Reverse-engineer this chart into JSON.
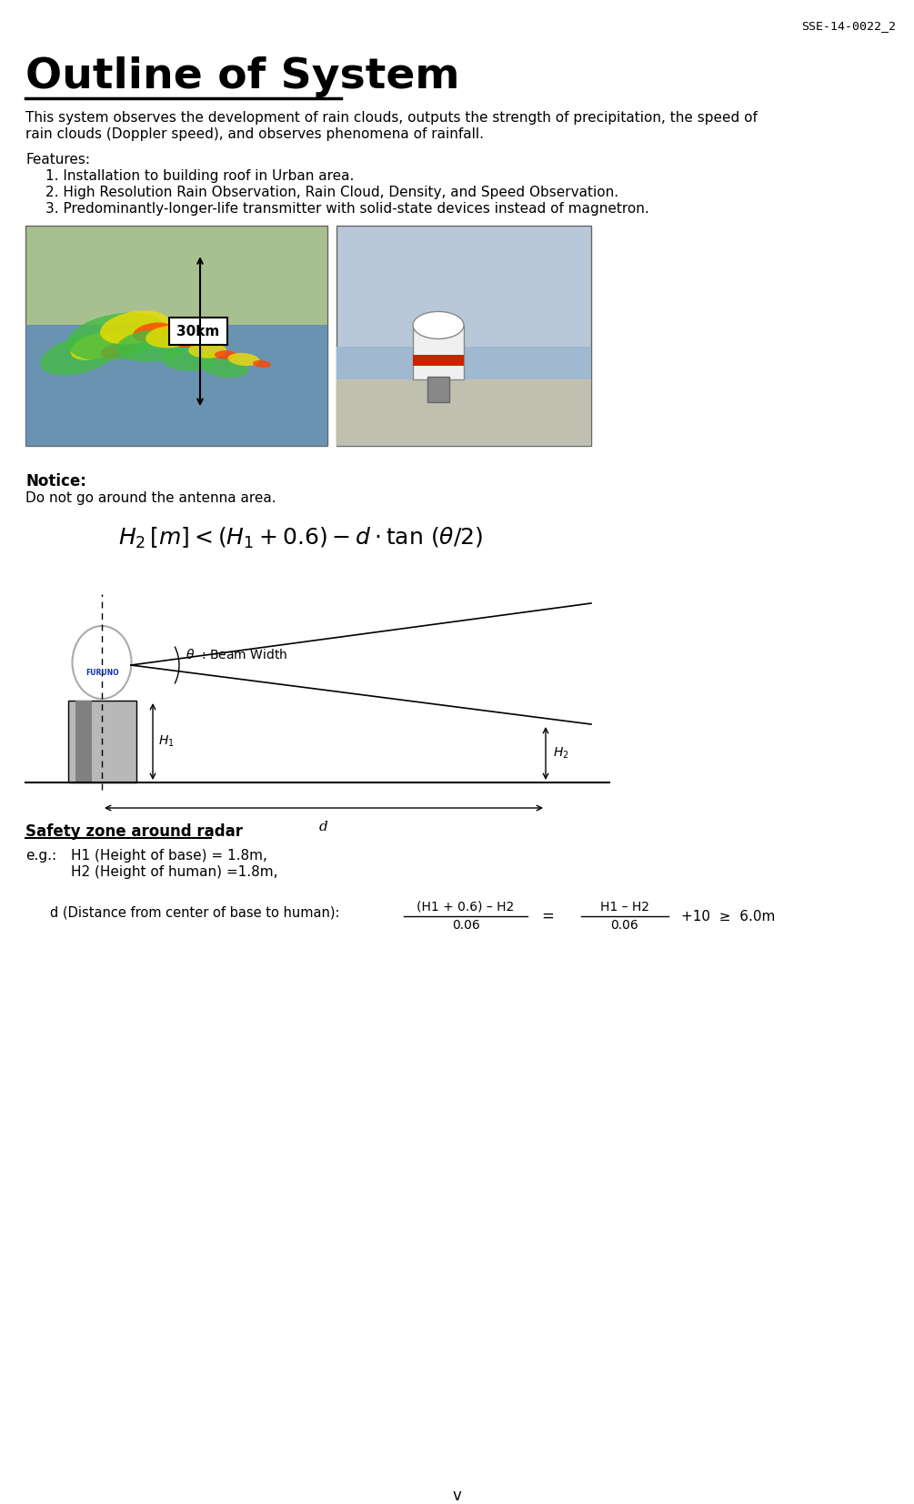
{
  "page_id": "SSE-14-0022_2",
  "title": "Outline of System",
  "intro_line1": "This system observes the development of rain clouds, outputs the strength of precipitation, the speed of",
  "intro_line2": "rain clouds (Doppler speed), and observes phenomena of rainfall.",
  "features_header": "Features:",
  "features": [
    "1. Installation to building roof in Urban area.",
    "2. High Resolution Rain Observation, Rain Cloud, Density, and Speed Observation.",
    "3. Predominantly-longer-life transmitter with solid-state devices instead of magnetron."
  ],
  "notice_header": "Notice:",
  "notice_text": "Do not go around the antenna area.",
  "safety_header": "Safety zone around radar",
  "safety_eg": "e.g.:",
  "safety_h1": "H1 (Height of base) = 1.8m,",
  "safety_h2": "H2 (Height of human) =1.8m,",
  "safety_d_label": "d (Distance from center of base to human):",
  "safety_formula_num1": "(H1 + 0.6) – H2",
  "safety_formula_den1": "0.06",
  "safety_formula_eq": "=",
  "safety_formula_num2": "H1 – H2",
  "safety_formula_den2": "0.06",
  "safety_formula_rest": "+10  ≥  6.0m",
  "page_num": "v",
  "bg_color": "#ffffff",
  "text_color": "#000000"
}
